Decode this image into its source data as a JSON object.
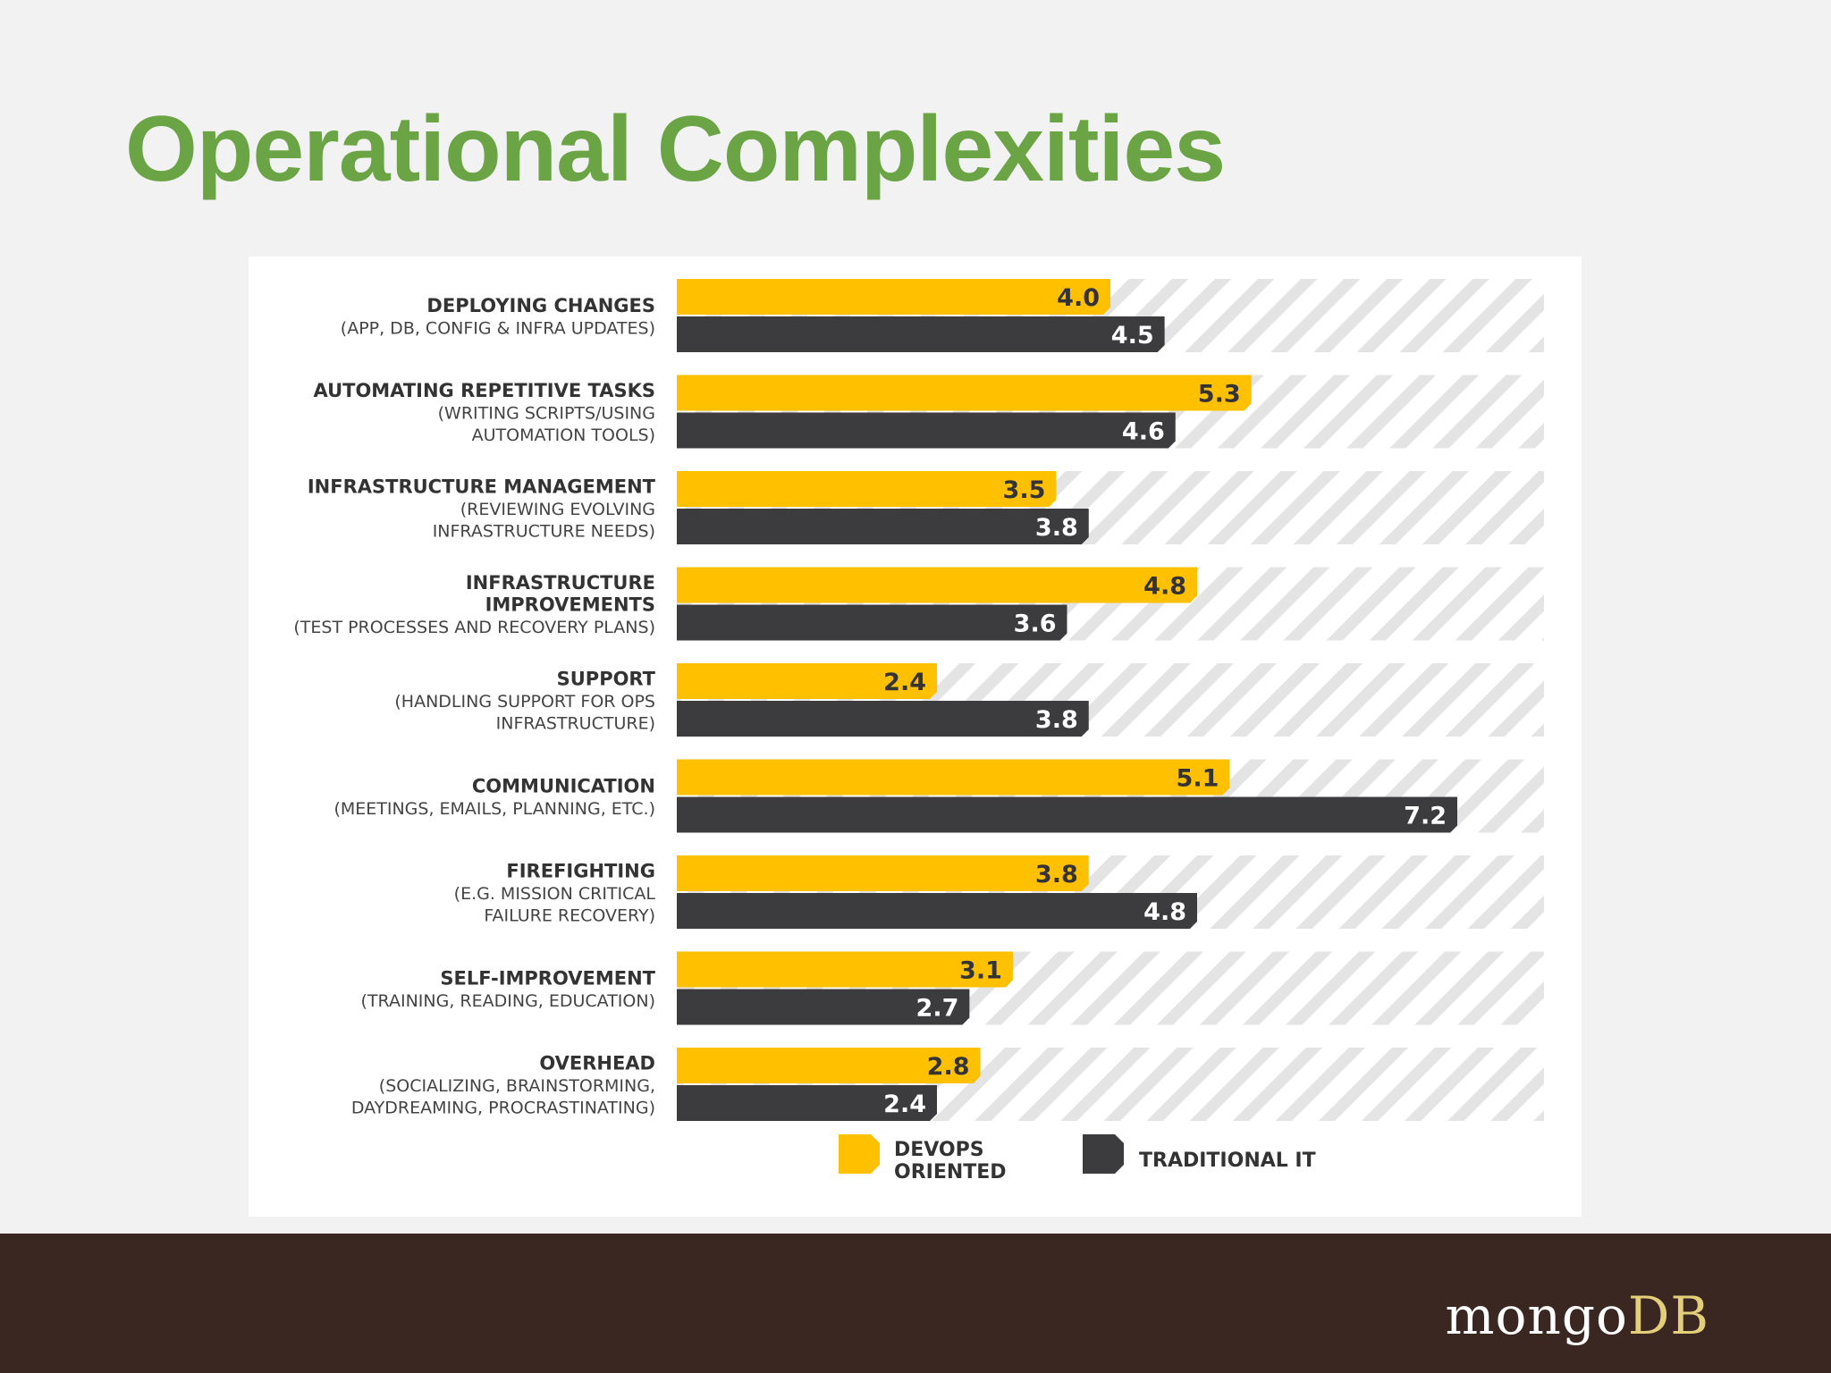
{
  "slide": {
    "title": "Operational Complexities",
    "logo_part1": "mongo",
    "logo_part2": "DB"
  },
  "colors": {
    "title": "#6aa444",
    "devops": "#ffc000",
    "traditional": "#3c3c3e",
    "stripe": "#e4e4e4",
    "footer": "#3b2722",
    "logo_text": "#ffffff",
    "logo_accent": "#e3cf7a",
    "label_bold": "#333333",
    "label_sub": "#444444",
    "value_on_devops": "#333333",
    "value_on_traditional": "#ffffff"
  },
  "chart_data": {
    "type": "bar",
    "orientation": "horizontal",
    "title": "",
    "xlabel": "",
    "ylabel": "",
    "xlim": [
      0,
      8
    ],
    "grid": false,
    "legend": "bottom-center",
    "categories": [
      {
        "title": [
          "DEPLOYING CHANGES"
        ],
        "subtitle": [
          "(APP, DB, CONFIG & INFRA UPDATES)"
        ]
      },
      {
        "title": [
          "AUTOMATING REPETITIVE TASKS"
        ],
        "subtitle": [
          "(WRITING SCRIPTS/USING",
          "AUTOMATION TOOLS)"
        ]
      },
      {
        "title": [
          "INFRASTRUCTURE MANAGEMENT"
        ],
        "subtitle": [
          "(REVIEWING EVOLVING",
          "INFRASTRUCTURE NEEDS)"
        ]
      },
      {
        "title": [
          "INFRASTRUCTURE",
          "IMPROVEMENTS"
        ],
        "subtitle": [
          "(TEST PROCESSES AND RECOVERY PLANS)"
        ]
      },
      {
        "title": [
          "SUPPORT"
        ],
        "subtitle": [
          "(HANDLING SUPPORT FOR OPS",
          "INFRASTRUCTURE)"
        ]
      },
      {
        "title": [
          "COMMUNICATION"
        ],
        "subtitle": [
          "(MEETINGS, EMAILS, PLANNING, ETC.)"
        ]
      },
      {
        "title": [
          "FIREFIGHTING"
        ],
        "subtitle": [
          "(E.G. MISSION CRITICAL",
          "FAILURE RECOVERY)"
        ]
      },
      {
        "title": [
          "SELF-IMPROVEMENT"
        ],
        "subtitle": [
          "(TRAINING, READING, EDUCATION)"
        ]
      },
      {
        "title": [
          "OVERHEAD"
        ],
        "subtitle": [
          "(SOCIALIZING, BRAINSTORMING,",
          "DAYDREAMING, PROCRASTINATING)"
        ]
      }
    ],
    "series": [
      {
        "name": [
          "DEVOPS",
          "ORIENTED"
        ],
        "key": "devops",
        "values": [
          4.0,
          5.3,
          3.5,
          4.8,
          2.4,
          5.1,
          3.8,
          3.1,
          2.8
        ],
        "labels": [
          "4.0",
          "5.3",
          "3.5",
          "4.8",
          "2.4",
          "5.1",
          "3.8",
          "3.1",
          "2.8"
        ]
      },
      {
        "name": [
          "TRADITIONAL IT"
        ],
        "key": "traditional",
        "values": [
          4.5,
          4.6,
          3.8,
          3.6,
          3.8,
          7.2,
          4.8,
          2.7,
          2.4
        ],
        "labels": [
          "4.5",
          "4.6",
          "3.8",
          "3.6",
          "3.8",
          "7.2",
          "4.8",
          "2.7",
          "2.4"
        ]
      }
    ]
  }
}
